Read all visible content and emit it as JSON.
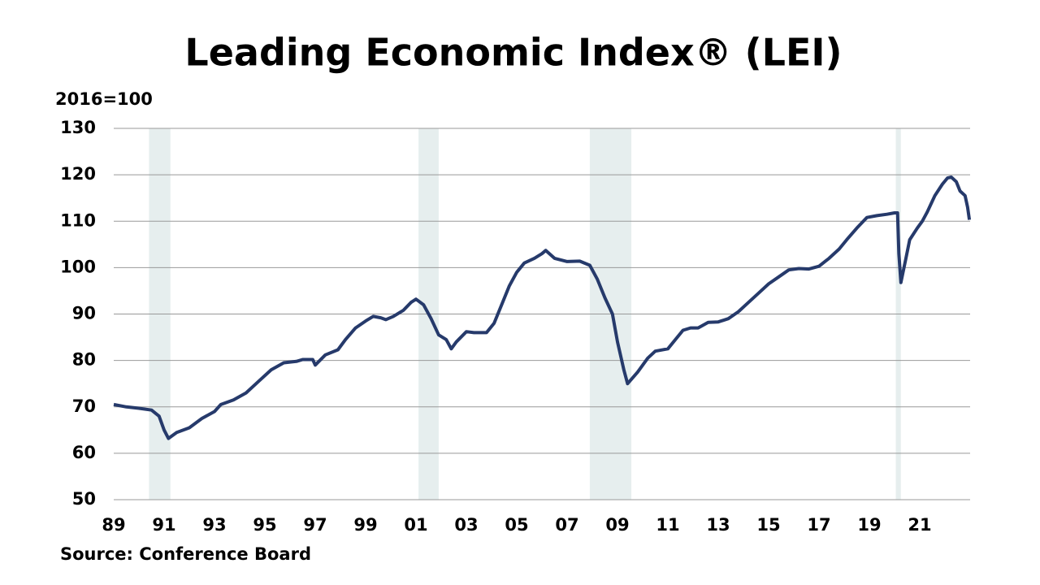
{
  "chart_data": {
    "type": "line",
    "title": "Leading Economic Index® (LEI)",
    "y_axis_label": "2016=100",
    "source": "Source: Conference Board",
    "xlim": [
      1989,
      2023
    ],
    "xticks": [
      {
        "value": 1989,
        "label": "89"
      },
      {
        "value": 1991,
        "label": "91"
      },
      {
        "value": 1993,
        "label": "93"
      },
      {
        "value": 1995,
        "label": "95"
      },
      {
        "value": 1997,
        "label": "97"
      },
      {
        "value": 1999,
        "label": "99"
      },
      {
        "value": 2001,
        "label": "01"
      },
      {
        "value": 2003,
        "label": "03"
      },
      {
        "value": 2005,
        "label": "05"
      },
      {
        "value": 2007,
        "label": "07"
      },
      {
        "value": 2009,
        "label": "09"
      },
      {
        "value": 2011,
        "label": "11"
      },
      {
        "value": 2013,
        "label": "13"
      },
      {
        "value": 2015,
        "label": "15"
      },
      {
        "value": 2017,
        "label": "17"
      },
      {
        "value": 2019,
        "label": "19"
      },
      {
        "value": 2021,
        "label": "21"
      }
    ],
    "ylim": [
      50,
      130
    ],
    "yticks": [
      50,
      60,
      70,
      80,
      90,
      100,
      110,
      120,
      130
    ],
    "grid": true,
    "shading_color": "#e6eeee",
    "shaded_periods": [
      [
        1990.4,
        1991.25
      ],
      [
        2001.1,
        2001.9
      ],
      [
        2007.9,
        2009.55
      ],
      [
        2020.05,
        2020.25
      ]
    ],
    "x": [
      1989.0,
      1989.5,
      1990.0,
      1990.5,
      1990.8,
      1991.0,
      1991.17,
      1991.5,
      1992.0,
      1992.5,
      1993.0,
      1993.25,
      1993.75,
      1994.25,
      1994.75,
      1995.25,
      1995.75,
      1996.25,
      1996.5,
      1996.9,
      1997.0,
      1997.4,
      1997.9,
      1998.2,
      1998.6,
      1999.0,
      1999.3,
      1999.6,
      1999.8,
      2000.1,
      2000.5,
      2000.8,
      2001.0,
      2001.3,
      2001.6,
      2001.9,
      2002.2,
      2002.4,
      2002.6,
      2003.0,
      2003.3,
      2003.8,
      2004.1,
      2004.4,
      2004.7,
      2005.0,
      2005.3,
      2005.7,
      2006.0,
      2006.15,
      2006.5,
      2007.0,
      2007.5,
      2007.9,
      2008.2,
      2008.5,
      2008.8,
      2009.0,
      2009.25,
      2009.4,
      2009.8,
      2010.2,
      2010.5,
      2011.0,
      2011.3,
      2011.6,
      2011.9,
      2012.2,
      2012.6,
      2013.0,
      2013.4,
      2013.8,
      2014.2,
      2014.6,
      2015.0,
      2015.4,
      2015.8,
      2016.2,
      2016.6,
      2017.0,
      2017.4,
      2017.8,
      2018.1,
      2018.5,
      2018.9,
      2019.3,
      2019.7,
      2020.0,
      2020.12,
      2020.17,
      2020.25,
      2020.45,
      2020.6,
      2020.9,
      2021.1,
      2021.3,
      2021.6,
      2021.9,
      2022.1,
      2022.25,
      2022.45,
      2022.6,
      2022.8,
      2022.9,
      2022.97
    ],
    "series": [
      {
        "name": "LEI",
        "color": "#263a6b",
        "values": [
          70.5,
          70,
          69.7,
          69.3,
          68,
          65,
          63.2,
          64.5,
          65.5,
          67.5,
          69,
          70.5,
          71.5,
          73,
          75.5,
          78,
          79.5,
          79.8,
          80.2,
          80.2,
          79,
          81.2,
          82.3,
          84.5,
          87,
          88.5,
          89.5,
          89.2,
          88.8,
          89.5,
          90.8,
          92.5,
          93.2,
          92,
          89,
          85.5,
          84.5,
          82.5,
          84,
          86.2,
          86,
          86,
          88,
          92,
          96,
          99,
          101,
          102,
          103,
          103.7,
          102,
          101.3,
          101.4,
          100.5,
          97.5,
          93.5,
          90,
          84,
          78,
          75,
          77.5,
          80.5,
          82,
          82.5,
          84.5,
          86.5,
          87,
          87,
          88.2,
          88.3,
          89,
          90.5,
          92.5,
          94.5,
          96.5,
          98,
          99.5,
          99.8,
          99.7,
          100.3,
          102,
          104,
          106,
          108.5,
          110.8,
          111.2,
          111.5,
          111.8,
          111.8,
          103,
          96.8,
          102,
          106,
          108.5,
          110,
          112,
          115.5,
          118,
          119.3,
          119.5,
          118.5,
          116.5,
          115.5,
          113,
          110.3
        ]
      }
    ]
  }
}
